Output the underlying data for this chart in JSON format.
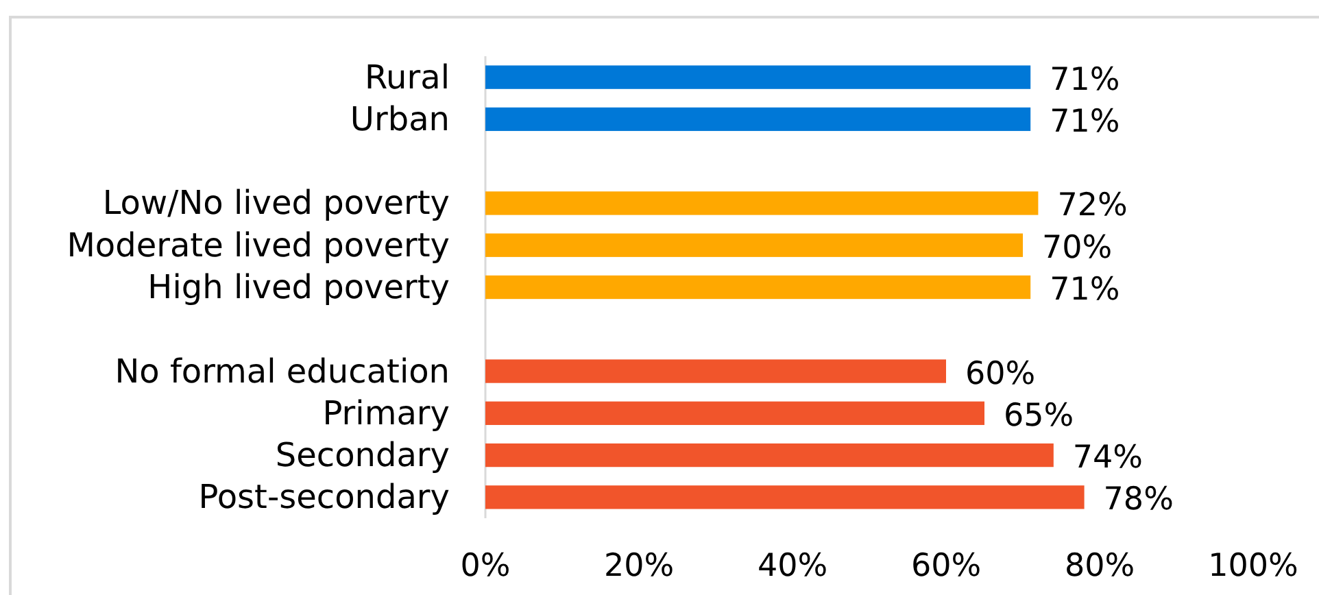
{
  "chart_data": {
    "type": "bar",
    "orientation": "horizontal",
    "categories": [
      "Rural",
      "Urban",
      null,
      "Low/No lived poverty",
      "Moderate lived poverty",
      "High lived poverty",
      null,
      "No formal education",
      "Primary",
      "Secondary",
      "Post-secondary"
    ],
    "values": [
      71,
      71,
      null,
      72,
      70,
      71,
      null,
      60,
      65,
      74,
      78
    ],
    "colors": [
      "#0078d7",
      "#0078d7",
      null,
      "#ffa800",
      "#ffa800",
      "#ffa800",
      null,
      "#f1552b",
      "#f1552b",
      "#f1552b",
      "#f1552b"
    ],
    "value_labels": [
      "71%",
      "71%",
      null,
      "72%",
      "70%",
      "71%",
      null,
      "60%",
      "65%",
      "74%",
      "78%"
    ],
    "xlim": [
      0,
      100
    ],
    "xticks": [
      {
        "value": 0,
        "label": "0%"
      },
      {
        "value": 20,
        "label": "20%"
      },
      {
        "value": 40,
        "label": "40%"
      },
      {
        "value": 60,
        "label": "60%"
      },
      {
        "value": 80,
        "label": "80%"
      },
      {
        "value": 100,
        "label": "100%"
      }
    ]
  }
}
